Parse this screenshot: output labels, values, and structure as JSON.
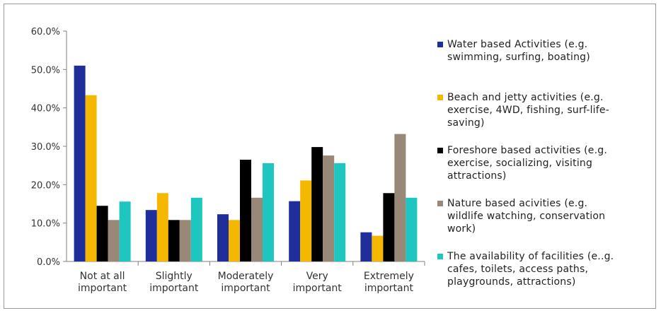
{
  "chart_data": {
    "type": "bar",
    "categories": [
      [
        "Not at all",
        "important"
      ],
      [
        "Slightly",
        "important"
      ],
      [
        "Moderately",
        "important"
      ],
      [
        "Very",
        "important"
      ],
      [
        "Extremely",
        "important"
      ]
    ],
    "ylim": [
      0,
      60
    ],
    "yticks": [
      "0.0%",
      "10.0%",
      "20.0%",
      "30.0%",
      "40.0%",
      "50.0%",
      "60.0%"
    ],
    "series": [
      {
        "name": "Water based Activities (e.g. swimming, surfing, boating)",
        "color": "#1f2e9a",
        "values": [
          51.0,
          13.4,
          12.3,
          15.7,
          7.6
        ]
      },
      {
        "name": "Beach and jetty activities (e.g. exercise, 4WD, fishing, surf-life-saving)",
        "color": "#f5b800",
        "values": [
          43.3,
          17.8,
          10.8,
          21.1,
          6.7
        ]
      },
      {
        "name": "Foreshore based activities (e.g. exercise, socializing, visiting attractions)",
        "color": "#000000",
        "values": [
          14.5,
          10.8,
          26.5,
          29.8,
          17.8
        ]
      },
      {
        "name": "Nature based acivities (e.g. wildlife watching, conservation work)",
        "color": "#998877",
        "values": [
          10.8,
          10.8,
          16.6,
          27.6,
          33.2
        ]
      },
      {
        "name": "The availability of facilities (e..g. cafes, toilets, access paths, playgrounds, attractions)",
        "color": "#1fc6c0",
        "values": [
          15.6,
          16.6,
          25.6,
          25.6,
          16.6
        ]
      }
    ]
  },
  "legend": {
    "items": [
      {
        "lines": [
          "Water based Activities (e.g.",
          "swimming, surfing, boating)"
        ]
      },
      {
        "lines": [
          "Beach and jetty activities (e.g.",
          "exercise, 4WD, fishing, surf-life-",
          "saving)"
        ]
      },
      {
        "lines": [
          "Foreshore based activities (e.g.",
          "exercise, socializing, visiting",
          "attractions)"
        ]
      },
      {
        "lines": [
          "Nature based acivities (e.g.",
          "wildlife watching, conservation",
          "work)"
        ]
      },
      {
        "lines": [
          "The availability of facilities (e..g.",
          "cafes, toilets, access paths,",
          "playgrounds, attractions)"
        ]
      }
    ]
  }
}
